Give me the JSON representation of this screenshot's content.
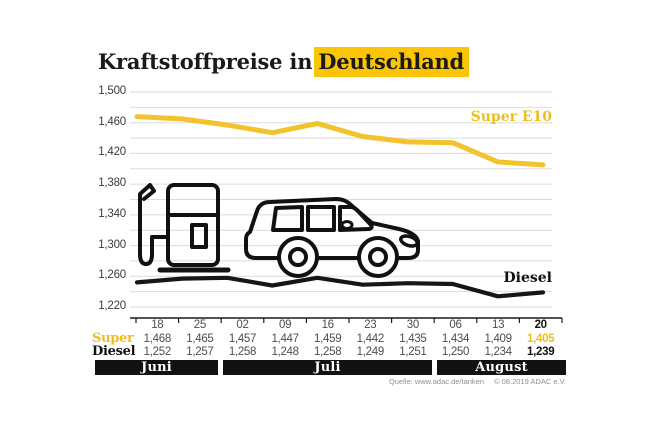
{
  "title": {
    "prefix": "Kraftstoffpreise in",
    "highlight": "Deutschland"
  },
  "colors": {
    "accent_yellow": "#EFBE1E",
    "highlight_yellow": "#FBC505",
    "line_yellow": "#F2C32C",
    "line_black": "#161616",
    "grid": "#DBDBDB",
    "axis": "#1a1a1a",
    "value_text": "#4d4d4d",
    "month_bar_bg": "#121212"
  },
  "chart_data": {
    "type": "line",
    "title": "Kraftstoffpreise in Deutschland",
    "xlabel": "",
    "ylabel": "",
    "ylim": [
      1220,
      1500
    ],
    "y_grid_step": 20,
    "y_label_step": 40,
    "y_tick_labels": [
      "1,500",
      "1,460",
      "1,420",
      "1,380",
      "1,340",
      "1,300",
      "1,260",
      "1,220"
    ],
    "grid": true,
    "legend_position": "inline-right",
    "categories": [
      "18",
      "25",
      "02",
      "09",
      "16",
      "23",
      "30",
      "06",
      "13",
      "20"
    ],
    "series": [
      {
        "name": "Super E10",
        "color": "#F2C32C",
        "values": [
          1468,
          1465,
          1457,
          1447,
          1459,
          1442,
          1435,
          1434,
          1409,
          1405
        ]
      },
      {
        "name": "Diesel",
        "color": "#161616",
        "values": [
          1252,
          1257,
          1258,
          1248,
          1258,
          1249,
          1251,
          1250,
          1234,
          1239
        ]
      }
    ]
  },
  "table": {
    "dates": [
      "18",
      "25",
      "02",
      "09",
      "16",
      "23",
      "30",
      "06",
      "13",
      "20"
    ],
    "rows": [
      {
        "label": "Super",
        "values": [
          "1,468",
          "1,465",
          "1,457",
          "1,447",
          "1,459",
          "1,442",
          "1,435",
          "1,434",
          "1,409",
          "1,405"
        ]
      },
      {
        "label": "Diesel",
        "values": [
          "1,252",
          "1,257",
          "1,258",
          "1,248",
          "1,258",
          "1,249",
          "1,251",
          "1,250",
          "1,234",
          "1,239"
        ]
      }
    ],
    "months": [
      {
        "label": "Juni",
        "columns": 2
      },
      {
        "label": "Juli",
        "columns": 5
      },
      {
        "label": "August",
        "columns": 3
      }
    ]
  },
  "footer": {
    "source": "Quelle: www.adac.de/tanken",
    "copyright": "© 08.2019  ADAC e.V."
  }
}
